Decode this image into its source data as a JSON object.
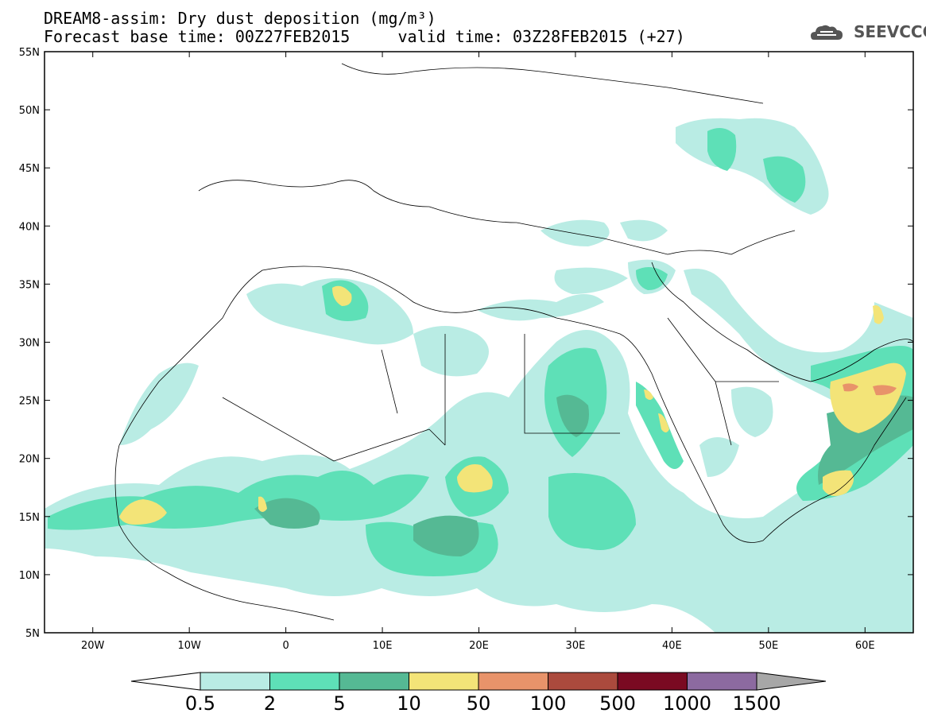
{
  "title": {
    "line1": "DREAM8-assim: Dry dust deposition (mg/m³)",
    "line2": "Forecast base time: 00Z27FEB2015     valid time: 03Z28FEB2015 (+27)"
  },
  "logo": {
    "text": "SEEVCCC",
    "icon": "cloud-icon"
  },
  "map": {
    "lat_range": [
      5,
      55
    ],
    "lon_range": [
      -25,
      65
    ],
    "lat_ticks": [
      {
        "value": 55,
        "label": "55N"
      },
      {
        "value": 50,
        "label": "50N"
      },
      {
        "value": 45,
        "label": "45N"
      },
      {
        "value": 40,
        "label": "40N"
      },
      {
        "value": 35,
        "label": "35N"
      },
      {
        "value": 30,
        "label": "30N"
      },
      {
        "value": 25,
        "label": "25N"
      },
      {
        "value": 20,
        "label": "20N"
      },
      {
        "value": 15,
        "label": "15N"
      },
      {
        "value": 10,
        "label": "10N"
      },
      {
        "value": 5,
        "label": "5N"
      }
    ],
    "lon_ticks": [
      {
        "value": -20,
        "label": "20W"
      },
      {
        "value": -10,
        "label": "10W"
      },
      {
        "value": 0,
        "label": "0"
      },
      {
        "value": 10,
        "label": "10E"
      },
      {
        "value": 20,
        "label": "20E"
      },
      {
        "value": 30,
        "label": "30E"
      },
      {
        "value": 40,
        "label": "40E"
      },
      {
        "value": 50,
        "label": "50E"
      },
      {
        "value": 60,
        "label": "60E"
      }
    ]
  },
  "colorbar": {
    "colors": [
      "#b9ece4",
      "#5ee0b7",
      "#55b994",
      "#f3e478",
      "#e8936a",
      "#ab4a3d",
      "#7a0a22",
      "#8c6aa0",
      "#a7a7a7"
    ],
    "labels": [
      "0.5",
      "2",
      "5",
      "10",
      "50",
      "100",
      "500",
      "1000",
      "1500"
    ]
  }
}
